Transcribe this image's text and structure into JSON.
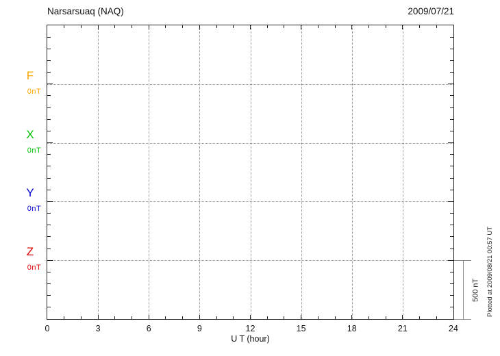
{
  "header": {
    "station": "Narsarsuaq (NAQ)",
    "date": "2009/07/21"
  },
  "channels": [
    {
      "id": "F",
      "label": "F",
      "value": "0nT",
      "color": "#FFA500"
    },
    {
      "id": "X",
      "label": "X",
      "value": "0nT",
      "color": "#00BE00"
    },
    {
      "id": "Y",
      "label": "Y",
      "value": "0nT",
      "color": "#0000CC"
    },
    {
      "id": "Z",
      "label": "Z",
      "value": "0nT",
      "color": "#DD0000"
    }
  ],
  "x_axis": {
    "ticks": [
      "0",
      "3",
      "6",
      "9",
      "12",
      "15",
      "18",
      "21",
      "24"
    ],
    "label": "U T (hour)"
  },
  "scale_bar": {
    "label": "500 nT"
  },
  "footer_note": "Plotted at 2009/08/21 00:57 UT",
  "chart_data": {
    "type": "line",
    "title": "Narsarsuaq (NAQ)",
    "subtitle": "2009/07/21",
    "xlabel": "U T (hour)",
    "x_range": [
      0,
      24
    ],
    "x_ticks": [
      0,
      3,
      6,
      9,
      12,
      15,
      18,
      21,
      24
    ],
    "y_scale_per_division_nT": 500,
    "y_minor_tick_nT": 100,
    "grid": true,
    "series": [
      {
        "name": "F",
        "color": "#FFA500",
        "baseline_label": "0nT",
        "baseline_nT": 0,
        "values": []
      },
      {
        "name": "X",
        "color": "#00BE00",
        "baseline_label": "0nT",
        "baseline_nT": 0,
        "values": []
      },
      {
        "name": "Y",
        "color": "#0000CC",
        "baseline_label": "0nT",
        "baseline_nT": 0,
        "values": []
      },
      {
        "name": "Z",
        "color": "#DD0000",
        "baseline_label": "0nT",
        "baseline_nT": 0,
        "values": []
      }
    ],
    "annotations": [
      "500 nT",
      "Plotted at 2009/08/21 00:57 UT"
    ],
    "note": "Empty magnetogram panel: dotted baselines for F, X, Y, Z at 0 nT, no data traces drawn"
  }
}
